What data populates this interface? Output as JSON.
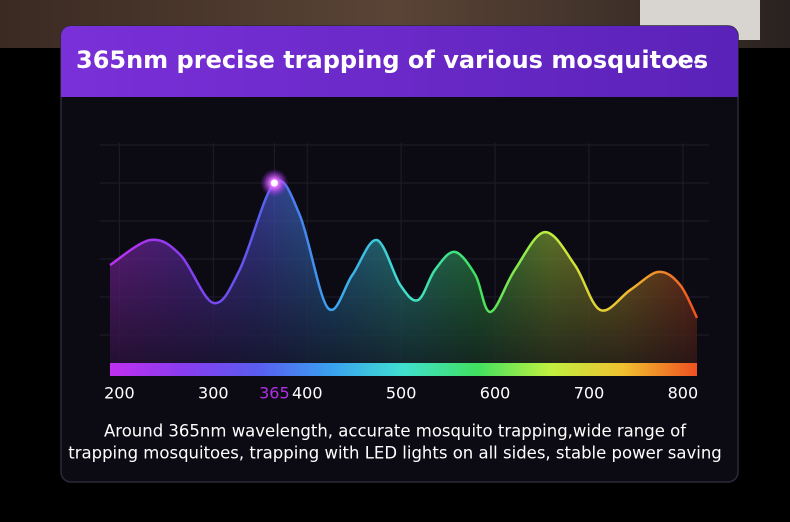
{
  "chart_data": {
    "type": "area",
    "title": "365nm precise trapping of various mosquitoes",
    "description": [
      "Around 365nm wavelength, accurate mosquito trapping,wide range of",
      "trapping mosquitoes, trapping with LED lights on all sides, stable power saving"
    ],
    "x": [
      190,
      233,
      265,
      300,
      328,
      365,
      392,
      422,
      448,
      474,
      499,
      518,
      536,
      557,
      579,
      595,
      621,
      653,
      685,
      712,
      744,
      774,
      797,
      815
    ],
    "values": [
      44.5,
      55.9,
      49.1,
      27.3,
      42.3,
      81.8,
      67.3,
      25.0,
      40.0,
      55.9,
      35.5,
      28.6,
      42.3,
      50.5,
      40.0,
      23.2,
      42.3,
      59.5,
      44.5,
      24.1,
      33.2,
      41.4,
      35.5,
      20.5
    ],
    "xlim": [
      190,
      815
    ],
    "ylim": [
      0,
      100
    ],
    "xticks": [
      200,
      300,
      365,
      400,
      500,
      600,
      700,
      800
    ],
    "grid": true,
    "highlight": {
      "x": 365,
      "color": "#b02ee8"
    },
    "spectrum_colors": [
      "#c030f0",
      "#8a3cf0",
      "#5a5cf0",
      "#3aa0f0",
      "#40e0d0",
      "#40e060",
      "#c0f040",
      "#f0c030",
      "#f05020"
    ]
  }
}
